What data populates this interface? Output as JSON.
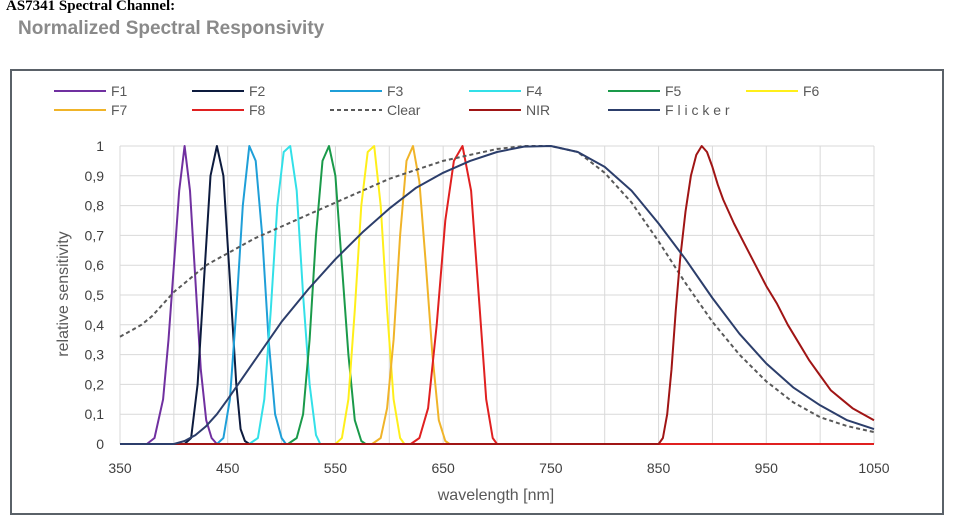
{
  "header": {
    "title": "AS7341 Spectral Channel:",
    "subtitle": "Normalized Spectral Responsivity"
  },
  "chart_data": {
    "type": "line",
    "xlabel": "wavelength [nm]",
    "ylabel": "relative sensitivity",
    "xlim": [
      350,
      1050
    ],
    "ylim": [
      0,
      1
    ],
    "x_ticks": [
      "350",
      "450",
      "550",
      "650",
      "750",
      "850",
      "950",
      "1050"
    ],
    "y_ticks": [
      "0",
      "0,1",
      "0,2",
      "0,3",
      "0,4",
      "0,5",
      "0,6",
      "0,7",
      "0,8",
      "0,9",
      "1"
    ],
    "grid": true,
    "legend_position": "top",
    "series": [
      {
        "name": "F1",
        "color": "#7030a0",
        "dash": false,
        "x": [
          350,
          375,
          382,
          390,
          395,
          400,
          405,
          410,
          415,
          420,
          425,
          430,
          435,
          440,
          450,
          1050
        ],
        "y": [
          0,
          0,
          0.02,
          0.15,
          0.35,
          0.6,
          0.85,
          1.0,
          0.85,
          0.55,
          0.25,
          0.08,
          0.02,
          0,
          0,
          0
        ]
      },
      {
        "name": "F2",
        "color": "#0d1b3e",
        "dash": false,
        "x": [
          350,
          410,
          416,
          422,
          428,
          434,
          440,
          446,
          452,
          458,
          462,
          466,
          470,
          1050
        ],
        "y": [
          0,
          0,
          0.02,
          0.2,
          0.55,
          0.9,
          1.0,
          0.9,
          0.55,
          0.2,
          0.05,
          0.01,
          0,
          0
        ]
      },
      {
        "name": "F3",
        "color": "#1f9fd8",
        "dash": false,
        "x": [
          350,
          440,
          446,
          452,
          458,
          464,
          470,
          476,
          482,
          488,
          494,
          500,
          504,
          1050
        ],
        "y": [
          0,
          0,
          0.02,
          0.15,
          0.45,
          0.8,
          1.0,
          0.95,
          0.7,
          0.35,
          0.1,
          0.02,
          0,
          0
        ]
      },
      {
        "name": "F4",
        "color": "#33e0e8",
        "dash": false,
        "x": [
          350,
          470,
          478,
          484,
          490,
          496,
          502,
          508,
          514,
          520,
          526,
          532,
          536,
          1050
        ],
        "y": [
          0,
          0,
          0.02,
          0.15,
          0.45,
          0.8,
          0.98,
          1.0,
          0.85,
          0.5,
          0.2,
          0.03,
          0,
          0
        ]
      },
      {
        "name": "F5",
        "color": "#1a9a4a",
        "dash": false,
        "x": [
          350,
          506,
          514,
          520,
          526,
          532,
          538,
          544,
          550,
          556,
          562,
          568,
          574,
          578,
          1050
        ],
        "y": [
          0,
          0,
          0.02,
          0.1,
          0.35,
          0.7,
          0.95,
          1.0,
          0.9,
          0.6,
          0.3,
          0.08,
          0.01,
          0,
          0
        ]
      },
      {
        "name": "F6",
        "color": "#ffef1a",
        "dash": false,
        "x": [
          350,
          550,
          556,
          562,
          568,
          574,
          580,
          586,
          592,
          598,
          604,
          610,
          614,
          1050
        ],
        "y": [
          0,
          0,
          0.02,
          0.15,
          0.45,
          0.8,
          0.98,
          1.0,
          0.8,
          0.45,
          0.15,
          0.02,
          0,
          0
        ]
      },
      {
        "name": "F7",
        "color": "#f0b429",
        "dash": false,
        "x": [
          350,
          584,
          592,
          598,
          604,
          610,
          616,
          622,
          628,
          634,
          640,
          646,
          652,
          656,
          1050
        ],
        "y": [
          0,
          0,
          0.02,
          0.12,
          0.35,
          0.7,
          0.95,
          1.0,
          0.88,
          0.6,
          0.3,
          0.08,
          0.01,
          0,
          0
        ]
      },
      {
        "name": "F8",
        "color": "#e02020",
        "dash": false,
        "x": [
          350,
          620,
          628,
          636,
          644,
          652,
          660,
          668,
          676,
          684,
          690,
          696,
          700,
          1050
        ],
        "y": [
          0,
          0,
          0.02,
          0.12,
          0.4,
          0.75,
          0.95,
          1.0,
          0.85,
          0.45,
          0.15,
          0.02,
          0,
          0
        ]
      },
      {
        "name": "Clear",
        "color": "#595959",
        "dash": true,
        "x": [
          350,
          360,
          370,
          380,
          390,
          400,
          410,
          420,
          430,
          440,
          450,
          475,
          500,
          525,
          550,
          575,
          600,
          625,
          650,
          675,
          700,
          725,
          750,
          775,
          800,
          825,
          850,
          875,
          900,
          925,
          950,
          975,
          1000,
          1025,
          1050
        ],
        "y": [
          0.36,
          0.38,
          0.4,
          0.43,
          0.47,
          0.51,
          0.54,
          0.57,
          0.6,
          0.62,
          0.64,
          0.69,
          0.73,
          0.77,
          0.81,
          0.85,
          0.89,
          0.92,
          0.95,
          0.97,
          0.99,
          1.0,
          1.0,
          0.98,
          0.91,
          0.81,
          0.68,
          0.54,
          0.41,
          0.3,
          0.21,
          0.14,
          0.09,
          0.06,
          0.04
        ]
      },
      {
        "name": "NIR",
        "color": "#a01515",
        "dash": false,
        "x": [
          350,
          850,
          854,
          858,
          862,
          866,
          870,
          875,
          880,
          885,
          890,
          895,
          900,
          905,
          910,
          920,
          930,
          940,
          950,
          960,
          970,
          980,
          990,
          1000,
          1010,
          1020,
          1030,
          1040,
          1050
        ],
        "y": [
          0,
          0,
          0.02,
          0.1,
          0.25,
          0.45,
          0.62,
          0.78,
          0.9,
          0.97,
          1.0,
          0.98,
          0.93,
          0.87,
          0.82,
          0.74,
          0.67,
          0.6,
          0.53,
          0.47,
          0.4,
          0.34,
          0.28,
          0.23,
          0.18,
          0.15,
          0.12,
          0.1,
          0.08
        ]
      },
      {
        "name": "Flicker",
        "color": "#2c3e6b",
        "dash": false,
        "x": [
          350,
          400,
          410,
          420,
          430,
          440,
          450,
          475,
          500,
          525,
          550,
          575,
          600,
          625,
          650,
          675,
          700,
          725,
          750,
          775,
          800,
          825,
          850,
          875,
          900,
          925,
          950,
          975,
          1000,
          1025,
          1050
        ],
        "y": [
          0,
          0,
          0.01,
          0.03,
          0.06,
          0.1,
          0.15,
          0.28,
          0.41,
          0.52,
          0.62,
          0.71,
          0.79,
          0.86,
          0.91,
          0.95,
          0.98,
          0.998,
          1.0,
          0.98,
          0.93,
          0.85,
          0.74,
          0.62,
          0.49,
          0.37,
          0.27,
          0.19,
          0.13,
          0.08,
          0.05
        ]
      }
    ],
    "legend_entries": [
      "F1",
      "F2",
      "F3",
      "F4",
      "F5",
      "F6",
      "F7",
      "F8",
      "Clear",
      "NIR",
      "F l i c k e r"
    ]
  }
}
